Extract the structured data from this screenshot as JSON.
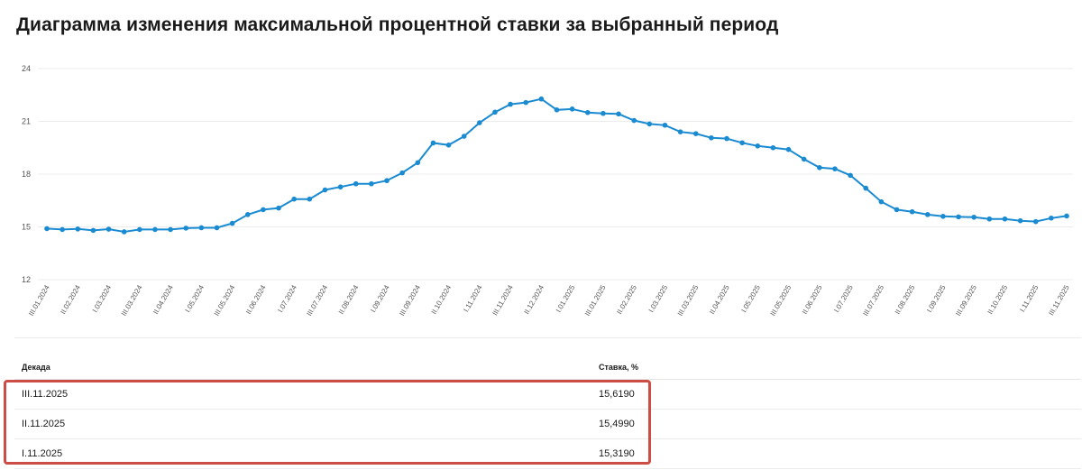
{
  "page": {
    "title": "Диаграмма изменения максимальной процентной ставки за выбранный период"
  },
  "chart_data": {
    "type": "line",
    "title": "",
    "xlabel": "",
    "ylabel": "",
    "ylim": [
      12,
      24
    ],
    "yticks": [
      12,
      15,
      18,
      21,
      24
    ],
    "grid": true,
    "x": [
      "III.01.2024",
      "I.02.2024",
      "II.02.2024",
      "III.02.2024",
      "I.03.2024",
      "II.03.2024",
      "III.03.2024",
      "I.04.2024",
      "II.04.2024",
      "III.04.2024",
      "I.05.2024",
      "II.05.2024",
      "III.05.2024",
      "I.06.2024",
      "II.06.2024",
      "III.06.2024",
      "I.07.2024",
      "II.07.2024",
      "III.07.2024",
      "I.08.2024",
      "II.08.2024",
      "III.08.2024",
      "I.09.2024",
      "II.09.2024",
      "III.09.2024",
      "I.10.2024",
      "II.10.2024",
      "III.10.2024",
      "I.11.2024",
      "II.11.2024",
      "III.11.2024",
      "I.12.2024",
      "II.12.2024",
      "III.12.2024",
      "I.01.2025",
      "II.01.2025",
      "III.01.2025",
      "I.02.2025",
      "II.02.2025",
      "III.02.2025",
      "I.03.2025",
      "II.03.2025",
      "III.03.2025",
      "I.04.2025",
      "II.04.2025",
      "III.04.2025",
      "I.05.2025",
      "II.05.2025",
      "III.05.2025",
      "I.06.2025",
      "II.06.2025",
      "III.06.2025",
      "I.07.2025",
      "II.07.2025",
      "III.07.2025",
      "I.08.2025",
      "II.08.2025",
      "III.08.2025",
      "I.09.2025",
      "II.09.2025",
      "III.09.2025",
      "I.10.2025",
      "II.10.2025",
      "III.10.2025",
      "I.11.2025",
      "II.11.2025",
      "III.11.2025"
    ],
    "xtick_labels": [
      "III.01.2024",
      "II.02.2024",
      "I.03.2024",
      "III.03.2024",
      "II.04.2024",
      "I.05.2024",
      "III.05.2024",
      "II.06.2024",
      "I.07.2024",
      "III.07.2024",
      "II.08.2024",
      "I.09.2024",
      "III.09.2024",
      "II.10.2024",
      "I.11.2024",
      "III.11.2024",
      "II.12.2024",
      "I.01.2025",
      "III.01.2025",
      "II.02.2025",
      "I.03.2025",
      "III.03.2025",
      "II.04.2025",
      "I.05.2025",
      "III.05.2025",
      "II.06.2025",
      "I.07.2025",
      "III.07.2025",
      "II.08.2025",
      "I.09.2025",
      "III.09.2025",
      "II.10.2025",
      "I.11.2025",
      "III.11.2025"
    ],
    "series": [
      {
        "color": "#1a8ad1",
        "values": [
          14.9,
          14.85,
          14.88,
          14.8,
          14.87,
          14.72,
          14.85,
          14.85,
          14.85,
          14.93,
          14.95,
          14.95,
          15.2,
          15.7,
          15.98,
          16.07,
          16.58,
          16.58,
          17.1,
          17.27,
          17.45,
          17.45,
          17.63,
          18.07,
          18.65,
          19.77,
          19.65,
          20.15,
          20.92,
          21.52,
          21.97,
          22.07,
          22.27,
          21.65,
          21.7,
          21.5,
          21.45,
          21.42,
          21.05,
          20.85,
          20.78,
          20.4,
          20.3,
          20.06,
          20.02,
          19.78,
          19.6,
          19.5,
          19.4,
          18.85,
          18.37,
          18.3,
          17.93,
          17.2,
          16.43,
          15.98,
          15.86,
          15.7,
          15.6,
          15.57,
          15.55,
          15.45,
          15.45,
          15.35,
          15.3,
          15.5,
          15.619
        ]
      }
    ]
  },
  "table": {
    "headers": {
      "decade": "Декада",
      "rate": "Ставка, %"
    },
    "rows": [
      {
        "decade": "III.11.2025",
        "rate": "15,6190"
      },
      {
        "decade": "II.11.2025",
        "rate": "15,4990"
      },
      {
        "decade": "I.11.2025",
        "rate": "15,3190"
      }
    ]
  }
}
